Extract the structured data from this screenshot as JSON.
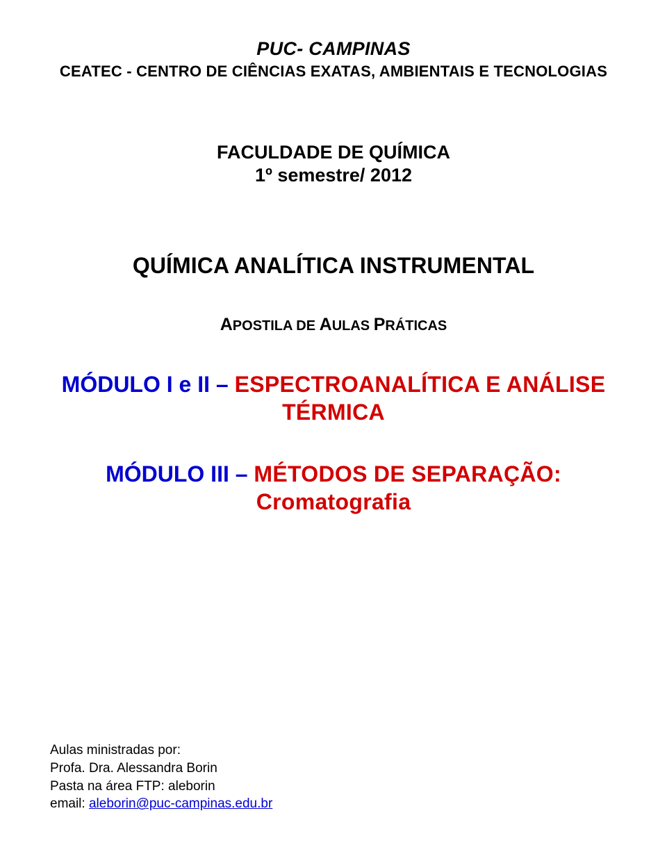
{
  "header": {
    "institution": "PUC- CAMPINAS",
    "center": "CEATEC - CENTRO DE CIÊNCIAS EXATAS, AMBIENTAIS E TECNOLOGIAS"
  },
  "faculty": "FACULDADE DE QUÍMICA",
  "semester": "1º semestre/ 2012",
  "course_title": "QUÍMICA ANALÍTICA INSTRUMENTAL",
  "subtitle": {
    "word1_cap": "A",
    "word1_rest": "POSTILA DE ",
    "word2_cap": "A",
    "word2_rest": "ULAS ",
    "word3_cap": "P",
    "word3_rest": "RÁTICAS"
  },
  "module1": {
    "label": "MÓDULO I e II",
    "dash": " – ",
    "topic": "ESPECTROANALÍTICA E ANÁLISE TÉRMICA"
  },
  "module2": {
    "label": "MÓDULO III",
    "dash": " – ",
    "topic": "MÉTODOS DE SEPARAÇÃO: Cromatografia"
  },
  "footer": {
    "taught_by": "Aulas ministradas por:",
    "prof": "Profa. Dra. Alessandra Borin",
    "ftp": "Pasta na área FTP: aleborin",
    "email_label": "email: ",
    "email_link": "aleborin@puc-campinas.edu.br"
  },
  "colors": {
    "module_label": "#0000d0",
    "module_topic": "#d20000",
    "link": "#0000d0",
    "text": "#000000",
    "background": "#ffffff"
  },
  "typography": {
    "font_family": "Arial",
    "title_size_pt": 20,
    "heading_size_pt": 24,
    "body_size_pt": 14
  }
}
